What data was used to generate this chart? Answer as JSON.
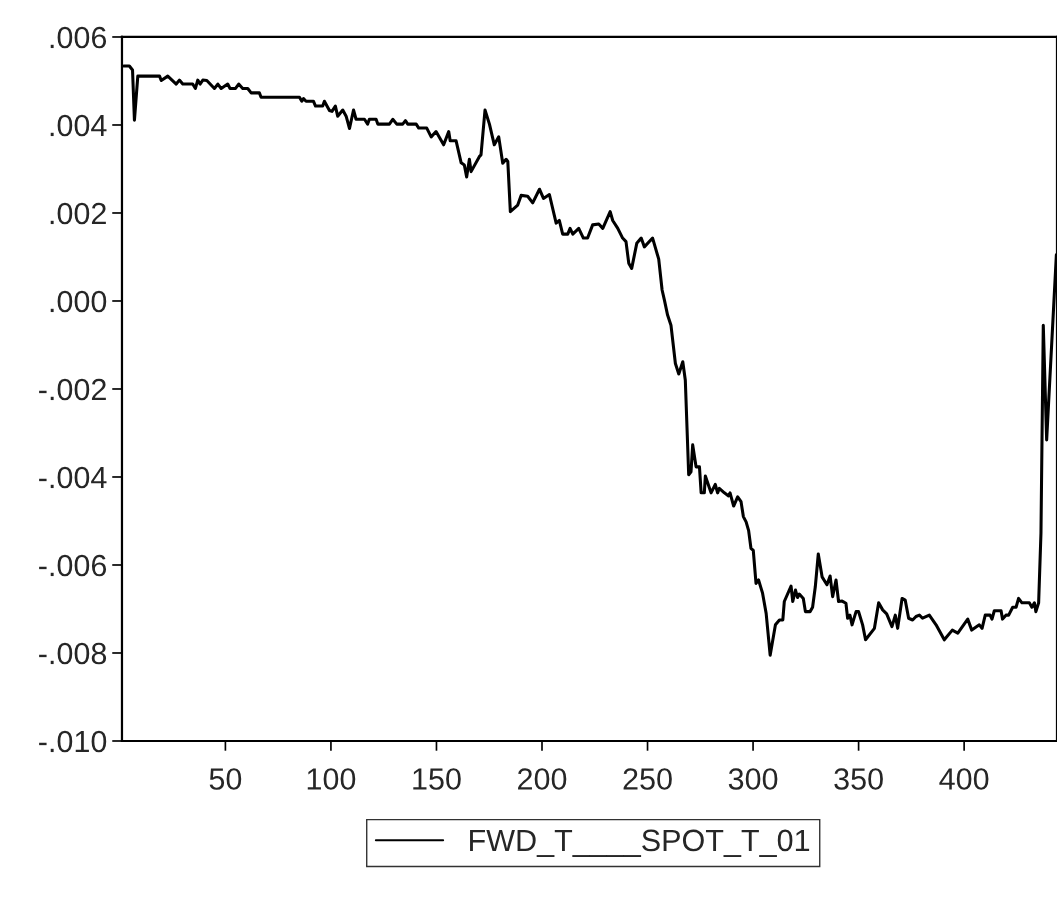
{
  "chart_data": {
    "type": "line",
    "x": [
      1.8,
      4.5,
      6,
      6.9,
      8.5,
      18.8,
      19.6,
      22.7,
      26.7,
      28.2,
      29.8,
      34.5,
      35.8,
      36.9,
      38,
      39.3,
      41.2,
      44.8,
      46.4,
      48,
      51.1,
      52.2,
      54.8,
      56.3,
      58.2,
      60.6,
      62.2,
      66.1,
      66.9,
      85.1,
      86.2,
      87,
      88.2,
      91.7,
      92.7,
      96.1,
      96.9,
      99.3,
      100.5,
      102.1,
      103.2,
      105.6,
      107.2,
      108.8,
      110.7,
      111.9,
      115.9,
      117.4,
      118.2,
      121.4,
      122.2,
      127.7,
      129.3,
      131.2,
      134,
      135.3,
      136.4,
      140.4,
      141.6,
      145.4,
      147.5,
      149.8,
      153.4,
      155.8,
      156.5,
      159.3,
      161.7,
      163.2,
      164.3,
      165.6,
      166.4,
      170.3,
      171.1,
      173,
      175.1,
      177.4,
      179.5,
      181.4,
      183,
      183.8,
      185,
      188.5,
      190.1,
      193.2,
      195.6,
      198.8,
      200.7,
      203.5,
      206.7,
      208.2,
      209.8,
      212.2,
      213.3,
      214.6,
      217.4,
      219.6,
      221.6,
      224,
      226.9,
      228.8,
      232.3,
      233.5,
      235.9,
      238.2,
      239.8,
      241.1,
      242.5,
      244.9,
      247,
      248.5,
      252.4,
      255.3,
      256.9,
      258,
      259.5,
      261.1,
      263.2,
      264.8,
      266.7,
      267.9,
      269.5,
      270.6,
      271.4,
      273,
      274.6,
      275.4,
      276.9,
      277.4,
      280.1,
      282.1,
      283.2,
      284,
      286.4,
      288.4,
      289.1,
      290.8,
      292.7,
      294.3,
      295.4,
      296.7,
      297.9,
      299,
      300.1,
      301.4,
      302.6,
      304.5,
      306.2,
      308.1,
      310.6,
      312.5,
      314.1,
      314.8,
      318,
      318.8,
      320.1,
      321.1,
      321.9,
      323.8,
      324.8,
      327,
      328.2,
      329.5,
      330.9,
      332.7,
      335,
      336.5,
      337.7,
      339.3,
      340.5,
      342.2,
      344,
      344.8,
      345.9,
      346.9,
      348.8,
      350,
      351.9,
      353.3,
      357.5,
      359.5,
      361.4,
      363.3,
      365.8,
      367.4,
      368.5,
      370.6,
      372.1,
      373.7,
      375.6,
      377.2,
      378.8,
      380.3,
      383.5,
      386.7,
      390.6,
      394.4,
      397,
      401.7,
      403.6,
      404.8,
      407.2,
      408.5,
      410,
      412.3,
      413.2,
      414.3,
      417.5,
      418.2,
      419.8,
      421.1,
      423,
      424.6,
      425.8,
      427.4,
      430.9,
      432.1,
      433.3,
      434,
      435.3,
      436.4,
      437.5,
      439.1,
      443.7
    ],
    "series": [
      {
        "name": "FWD_T____SPOT_T_01",
        "color": "#000000",
        "values": [
          0.00534,
          0.00534,
          0.00525,
          0.00411,
          0.00511,
          0.00511,
          0.00501,
          0.00511,
          0.00493,
          0.00502,
          0.00493,
          0.00493,
          0.00483,
          0.00502,
          0.00493,
          0.00502,
          0.00501,
          0.00483,
          0.00493,
          0.00483,
          0.00493,
          0.00483,
          0.00483,
          0.00493,
          0.00483,
          0.00483,
          0.00473,
          0.00473,
          0.00463,
          0.00463,
          0.00454,
          0.0046,
          0.00454,
          0.00454,
          0.00443,
          0.00443,
          0.00454,
          0.00433,
          0.00431,
          0.00443,
          0.0042,
          0.00434,
          0.0042,
          0.00392,
          0.00434,
          0.00413,
          0.00413,
          0.00402,
          0.00413,
          0.00413,
          0.00402,
          0.00402,
          0.00413,
          0.00402,
          0.00402,
          0.0041,
          0.00402,
          0.00402,
          0.00393,
          0.00393,
          0.00373,
          0.00385,
          0.00355,
          0.00385,
          0.00364,
          0.00364,
          0.00314,
          0.00309,
          0.00282,
          0.00322,
          0.00294,
          0.00328,
          0.00332,
          0.00434,
          0.00402,
          0.00355,
          0.00373,
          0.00313,
          0.00322,
          0.00317,
          0.00203,
          0.00218,
          0.0024,
          0.00238,
          0.00223,
          0.00254,
          0.00233,
          0.00242,
          0.00177,
          0.00183,
          0.00152,
          0.00152,
          0.00165,
          0.00152,
          0.00165,
          0.00143,
          0.00143,
          0.00173,
          0.00175,
          0.00165,
          0.00203,
          0.00183,
          0.00165,
          0.00143,
          0.00135,
          0.00086,
          0.00074,
          0.00131,
          0.00143,
          0.00123,
          0.00143,
          0.00095,
          0.00025,
          2e-05,
          -0.00032,
          -0.00055,
          -0.00142,
          -0.00166,
          -0.00138,
          -0.0018,
          -0.00395,
          -0.00388,
          -0.00327,
          -0.00377,
          -0.00377,
          -0.00436,
          -0.00436,
          -0.00398,
          -0.00436,
          -0.00417,
          -0.00436,
          -0.00426,
          -0.00436,
          -0.00443,
          -0.00436,
          -0.00466,
          -0.00445,
          -0.00456,
          -0.0049,
          -0.00502,
          -0.00522,
          -0.00562,
          -0.00567,
          -0.00642,
          -0.00634,
          -0.00664,
          -0.0071,
          -0.00805,
          -0.00736,
          -0.00725,
          -0.00725,
          -0.00683,
          -0.00648,
          -0.00683,
          -0.00657,
          -0.00674,
          -0.00666,
          -0.00676,
          -0.00706,
          -0.00706,
          -0.00696,
          -0.00649,
          -0.00575,
          -0.00627,
          -0.00645,
          -0.00625,
          -0.00672,
          -0.00634,
          -0.00683,
          -0.00682,
          -0.00687,
          -0.00721,
          -0.00714,
          -0.00736,
          -0.00706,
          -0.00706,
          -0.00736,
          -0.0077,
          -0.00744,
          -0.00686,
          -0.00702,
          -0.00711,
          -0.0074,
          -0.00714,
          -0.00744,
          -0.00676,
          -0.0068,
          -0.00721,
          -0.00725,
          -0.00717,
          -0.00714,
          -0.00721,
          -0.00714,
          -0.00736,
          -0.0077,
          -0.00748,
          -0.00755,
          -0.00723,
          -0.00748,
          -0.00744,
          -0.00736,
          -0.00744,
          -0.00714,
          -0.00714,
          -0.00723,
          -0.00704,
          -0.00704,
          -0.00723,
          -0.00714,
          -0.00714,
          -0.00696,
          -0.00696,
          -0.00676,
          -0.00686,
          -0.00686,
          -0.00696,
          -0.00686,
          -0.00706,
          -0.00686,
          -0.00528,
          -0.00055,
          -0.00316,
          0.00105
        ]
      }
    ],
    "xlim": [
      1,
      444
    ],
    "xticks": [
      50,
      100,
      150,
      200,
      250,
      300,
      350,
      400
    ],
    "ylim": [
      -0.01,
      0.006
    ],
    "yticks": [
      {
        "value": -0.01,
        "label": "-.010"
      },
      {
        "value": -0.008,
        "label": "-.008"
      },
      {
        "value": -0.006,
        "label": "-.006"
      },
      {
        "value": -0.004,
        "label": "-.004"
      },
      {
        "value": -0.002,
        "label": "-.002"
      },
      {
        "value": 0.0,
        "label": ".000"
      },
      {
        "value": 0.002,
        "label": ".002"
      },
      {
        "value": 0.004,
        "label": ".004"
      },
      {
        "value": 0.006,
        "label": ".006"
      }
    ],
    "grid": false,
    "legend": "bottom",
    "marker": "none",
    "line_style": "solid"
  }
}
